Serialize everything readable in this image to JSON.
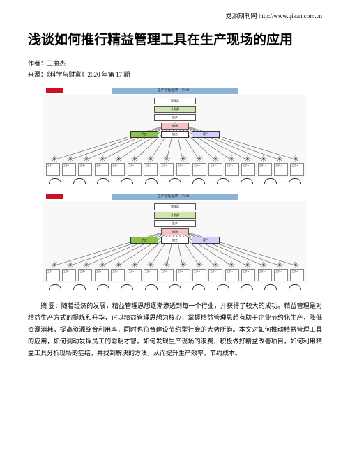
{
  "header": {
    "source_site": "龙源期刊网 http://www.qikan.com.cn"
  },
  "title": "浅谈如何推行精益管理工具在生产现场的应用",
  "meta": {
    "author_label": "作者：",
    "author": "王丽杰",
    "source_label": "来源：",
    "source": "《科学与财富》2020 年第 17 期"
  },
  "figure1": {
    "title_banner": "生产流程图表（VSM）",
    "central_boxes": [
      "管理层",
      "计划部",
      "生产",
      "物流"
    ],
    "tags": [
      "供应",
      "加工",
      "客户"
    ],
    "leaves": [
      "工序1",
      "工序2",
      "工序3",
      "工序4",
      "工序5",
      "工序6",
      "工序7",
      "工序8",
      "工序9",
      "工序10",
      "工序11",
      "工序12",
      "工序13",
      "工序14",
      "工序15",
      "工序16"
    ],
    "colors": {
      "banner": "#8bb3d6",
      "logo": "#d01020",
      "hl1": "#cfe6b0",
      "hl2": "#f4c2c2",
      "tag_a": "#8bc34a"
    }
  },
  "figure2": {
    "title_banner": "生产流程图表（VSM）",
    "central_boxes": [
      "管理层",
      "计划部",
      "生产",
      "物流"
    ],
    "tags": [
      "供应",
      "加工",
      "客户"
    ],
    "leaves": [
      "工序1",
      "工序2",
      "工序3",
      "工序4",
      "工序5",
      "工序6",
      "工序7",
      "工序8",
      "工序9",
      "工序10",
      "工序11",
      "工序12",
      "工序13",
      "工序14",
      "工序15",
      "工序16"
    ]
  },
  "abstract": {
    "label": "摘 要：",
    "text": "随着经济的发展，精益管理思想逐渐渗透到每一个行业，并获得了较大的成功。精益管理是对精益生产方式的提炼和升华，它以精益管理思想为核心，掌握精益管理思想有助于企业节约化生产，降低资源消耗，提高资源综合利用率，同时也符合建设节约型社会的大势所趋。本文对如何推动精益管理工具的应用，如何调动发挥员工的聪明才智，如何发现生产现场的浪费，积极做好精益改善项目，如何利用精益工具分析现场的症结，并找到解决的方法，从而提升生产效率，节约成本。"
  }
}
